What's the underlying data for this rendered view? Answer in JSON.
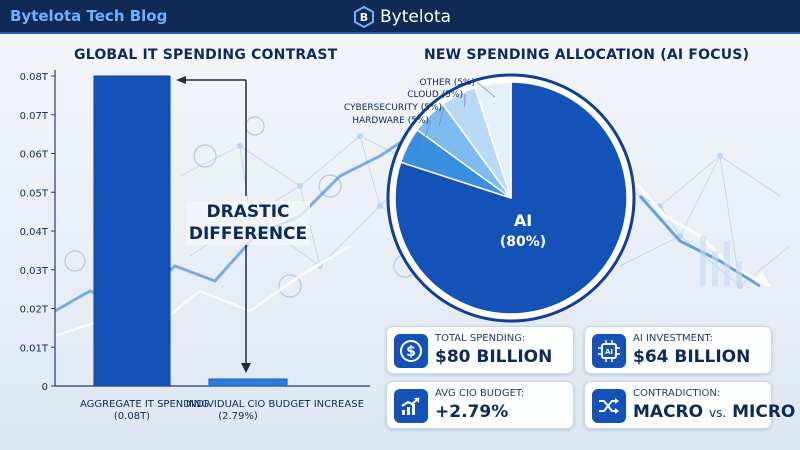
{
  "header": {
    "blog_name": "Bytelota Tech Blog",
    "brand_name": "Bytelota"
  },
  "colors": {
    "header_bg": "#0f2a55",
    "accent_blue": "#1552b8",
    "dark_blue": "#0f4aa8",
    "light_blue": "#5aa6e8"
  },
  "chart_data": [
    {
      "type": "bar",
      "title": "GLOBAL IT SPENDING CONTRAST",
      "categories": [
        "AGGREGATE IT SPENDING",
        "INDIVIDUAL CIO BUDGET INCREASE"
      ],
      "category_values": [
        "(0.08T)",
        "(2.79%)"
      ],
      "values": [
        0.08,
        0.0018
      ],
      "yticks": [
        "0",
        "0.01T",
        "0.02T",
        "0.03T",
        "0.04T",
        "0.05T",
        "0.06T",
        "0.07T",
        "0.08T"
      ],
      "ylim": [
        0,
        0.08
      ],
      "annotation": [
        "DRASTIC",
        "DIFFERENCE"
      ],
      "grid": false
    },
    {
      "type": "pie",
      "title": "NEW SPENDING ALLOCATION (AI FOCUS)",
      "slices": [
        {
          "label": "AI",
          "display": "(80%)",
          "value": 80,
          "color": "#1552b8"
        },
        {
          "label": "HARDWARE (5%)",
          "value": 5,
          "color": "#3a8ee0"
        },
        {
          "label": "CYBERSECURITY (5%)",
          "value": 5,
          "color": "#7fbaf0"
        },
        {
          "label": "CLOUD (5%)",
          "value": 5,
          "color": "#b9daf7"
        },
        {
          "label": "OTHER (5%)",
          "value": 5,
          "color": "#e3f0fc"
        }
      ]
    }
  ],
  "cards": [
    {
      "icon": "dollar-icon",
      "label": "TOTAL SPENDING:",
      "value": "$80 BILLION"
    },
    {
      "icon": "ai-chip-icon",
      "label": "AI INVESTMENT:",
      "value": "$64 BILLION"
    },
    {
      "icon": "growth-chart-icon",
      "label": "AVG CIO BUDGET:",
      "value": "+2.79%"
    },
    {
      "icon": "shuffle-icon",
      "label": "CONTRADICTION:",
      "value_a": "MACRO",
      "value_vs": "vs.",
      "value_b": "MICRO"
    }
  ]
}
